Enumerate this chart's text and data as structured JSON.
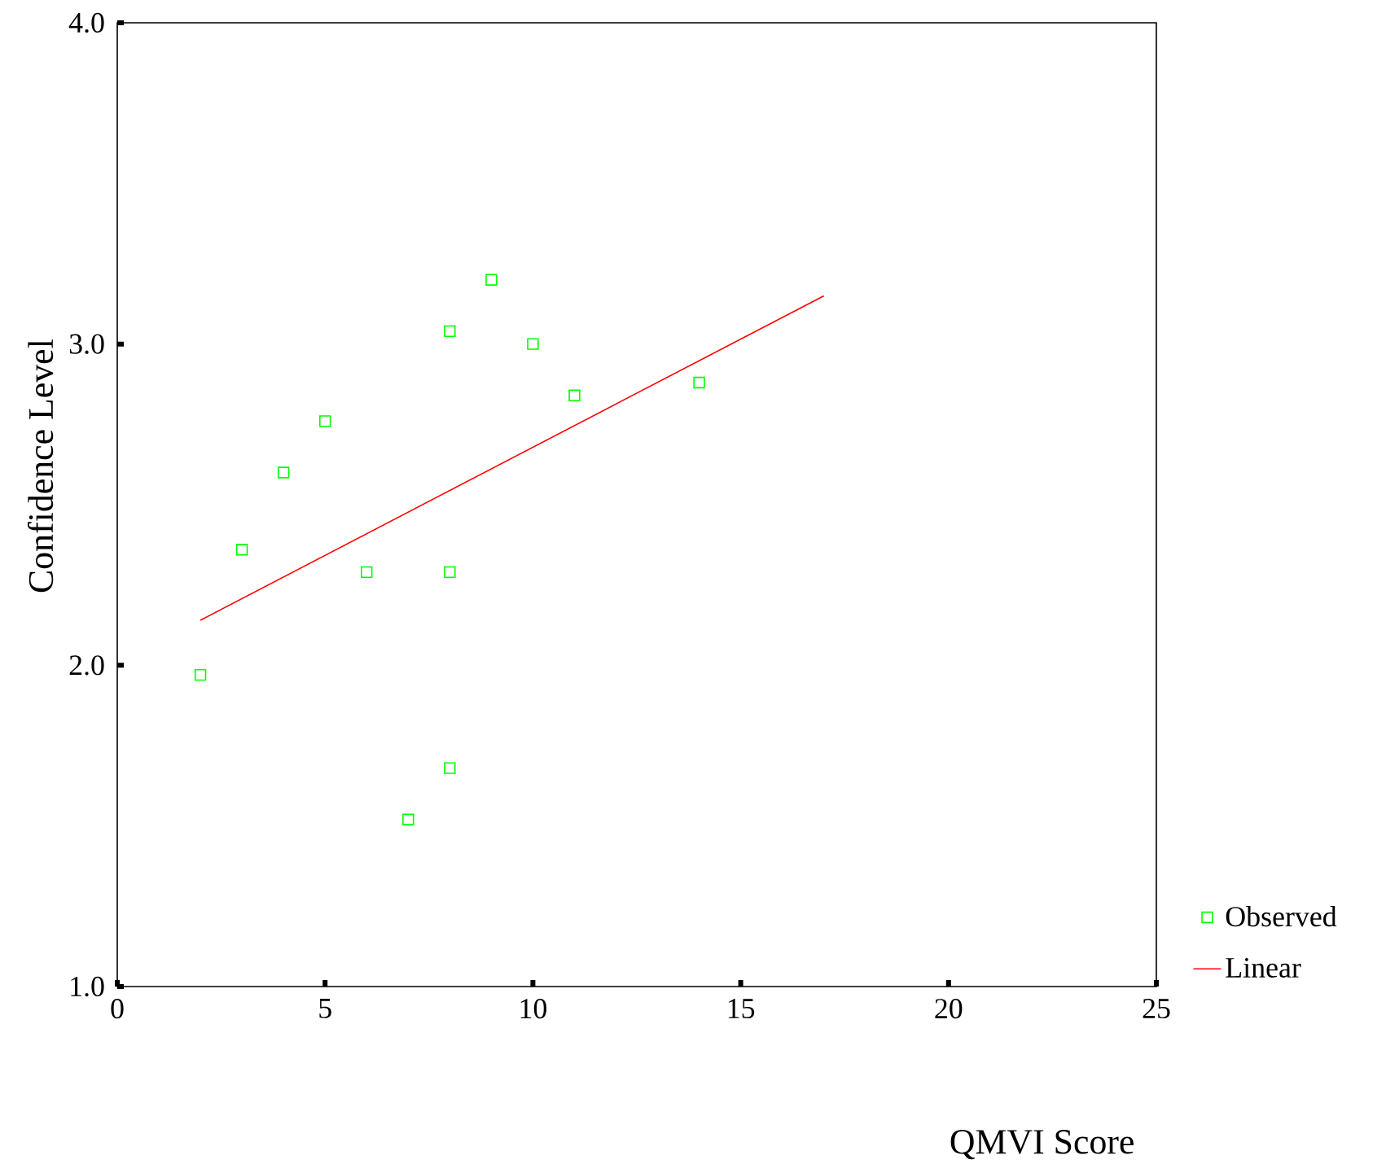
{
  "chart_data": {
    "type": "scatter",
    "xlabel": "QMVI Score",
    "ylabel": "Confidence Level",
    "xlim": [
      0,
      25
    ],
    "ylim": [
      1,
      4
    ],
    "xticks": [
      0,
      5,
      10,
      15,
      20,
      25
    ],
    "yticks": [
      {
        "value": 1,
        "label": "1.0"
      },
      {
        "value": 2,
        "label": "2.0"
      },
      {
        "value": 3,
        "label": "3.0"
      },
      {
        "value": 4,
        "label": "4.0"
      }
    ],
    "grid": false,
    "legend": "bottom right",
    "marker": "square",
    "series": [
      {
        "name": "Observed",
        "color": "#00ff00",
        "x": [
          2,
          3,
          4,
          5,
          6,
          7,
          8,
          8,
          8,
          9,
          10,
          11,
          14
        ],
        "values": [
          1.97,
          2.36,
          2.6,
          2.76,
          2.29,
          1.52,
          3.04,
          2.29,
          1.68,
          3.2,
          3.0,
          2.84,
          2.88
        ]
      },
      {
        "name": "Linear",
        "type": "line",
        "marker": "none",
        "color": "#ff0000",
        "x": [
          2,
          17
        ],
        "values": [
          2.14,
          3.15
        ]
      }
    ]
  }
}
